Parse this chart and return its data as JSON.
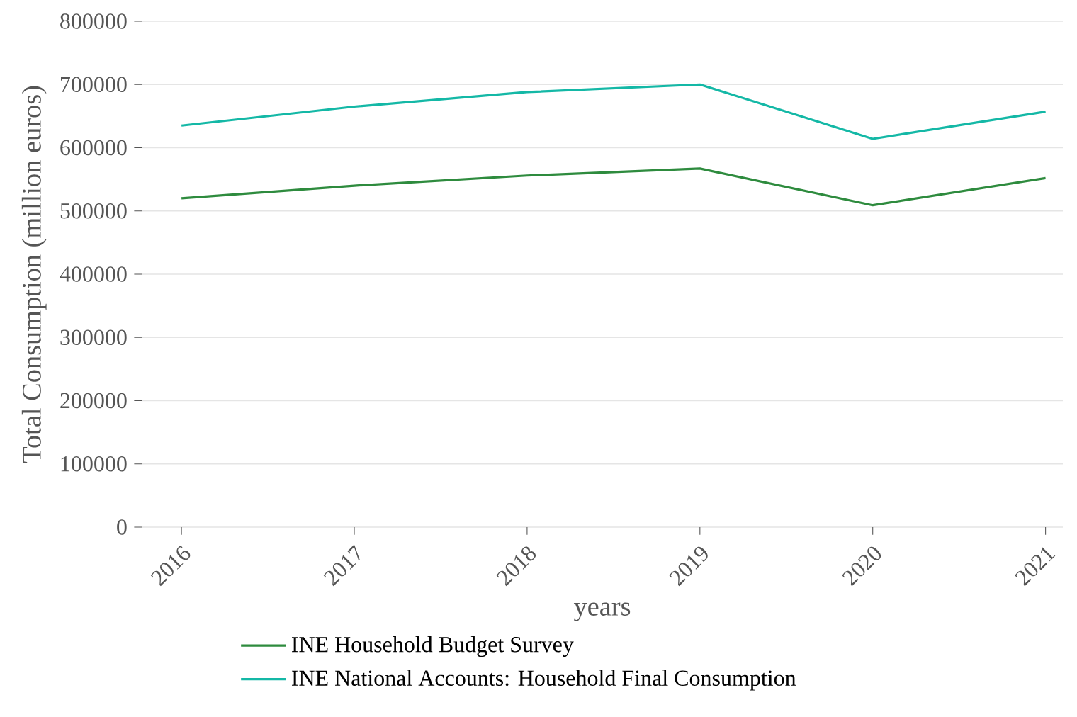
{
  "chart_data": {
    "type": "line",
    "xlabel": "years",
    "ylabel": "Total Consumption (million euros)",
    "categories": [
      "2016",
      "2017",
      "2018",
      "2019",
      "2020",
      "2021"
    ],
    "series": [
      {
        "name": "INE Household Budget Survey",
        "color": "#2e8b3e",
        "values": [
          520000,
          540000,
          556000,
          567000,
          509000,
          552000
        ]
      },
      {
        "name": "INE National Accounts: Household Final Consumption",
        "color": "#14b8a6",
        "values": [
          635000,
          665000,
          688000,
          700000,
          614000,
          657000
        ]
      }
    ],
    "ylim": [
      0,
      800000
    ],
    "yticks": [
      0,
      100000,
      200000,
      300000,
      400000,
      500000,
      600000,
      700000,
      800000
    ],
    "grid": "y",
    "legend": "bottom",
    "marker": "none",
    "line_style": "solid"
  }
}
